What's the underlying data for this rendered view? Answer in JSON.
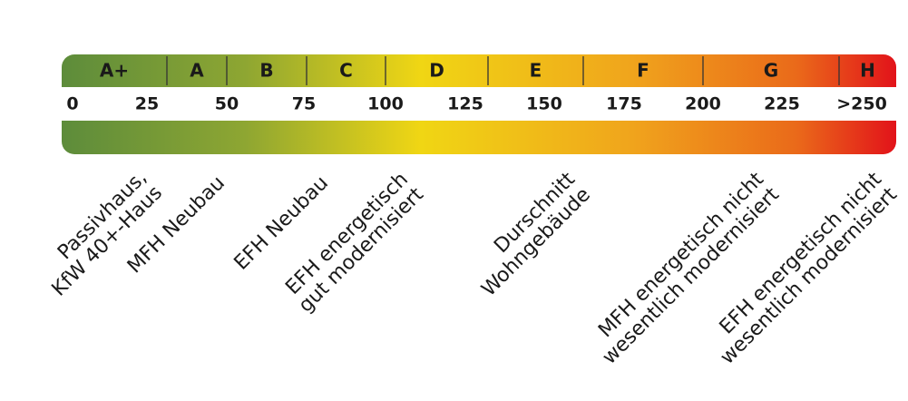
{
  "classes": [
    "A+",
    "A",
    "B",
    "C",
    "D",
    "E",
    "F",
    "G",
    "H"
  ],
  "scale": [
    "0",
    "25",
    "50",
    "75",
    "100",
    "125",
    "150",
    "175",
    "200",
    "225",
    ">250"
  ],
  "annotations": [
    [
      "Passivhaus,",
      "KfW 40+-Haus"
    ],
    [
      "MFH Neubau"
    ],
    [
      "EFH Neubau"
    ],
    [
      "EFH energetisch",
      "gut modernisiert"
    ],
    [
      "Durschnitt",
      "Wohngebäude"
    ],
    [
      "MFH energetisch nicht",
      "wesentlich modernisiert"
    ],
    [
      "EFH energetisch nicht",
      "wesentlich modernisiert"
    ]
  ]
}
